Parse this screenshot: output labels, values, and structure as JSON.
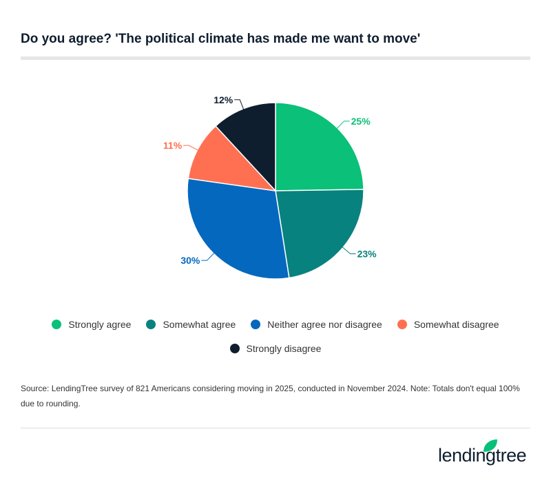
{
  "title": "Do you agree? 'The political climate has made me want to move'",
  "chart_data": {
    "type": "pie",
    "title": "Do you agree? 'The political climate has made me want to move'",
    "start": "top",
    "direction": "clockwise",
    "series": [
      {
        "name": "Strongly agree",
        "value": 25,
        "label": "25%",
        "color": "#0bc078"
      },
      {
        "name": "Somewhat agree",
        "value": 23,
        "label": "23%",
        "color": "#08827e"
      },
      {
        "name": "Neither agree nor disagree",
        "value": 30,
        "label": "30%",
        "color": "#0468be"
      },
      {
        "name": "Somewhat disagree",
        "value": 11,
        "label": "11%",
        "color": "#ff7052"
      },
      {
        "name": "Strongly disagree",
        "value": 12,
        "label": "12%",
        "color": "#0f1e2f"
      }
    ],
    "legend_position": "bottom"
  },
  "source": "Source: LendingTree survey of 821 Americans considering moving in 2025, conducted in November 2024. Note: Totals don't equal 100% due to rounding.",
  "logo": {
    "text": "lendingtree",
    "color": "#08c078"
  }
}
